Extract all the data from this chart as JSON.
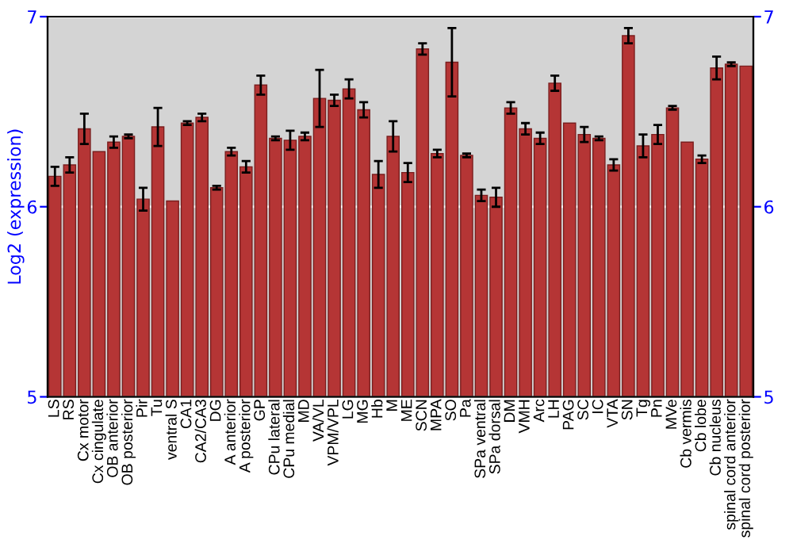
{
  "chart_data": {
    "type": "bar",
    "ylabel": "Log2 (expression)",
    "categories": [
      "LS",
      "RS",
      "Cx motor",
      "Cx cingulate",
      "OB anterior",
      "OB posterior",
      "Pir",
      "Tu",
      "ventral S",
      "CA1",
      "CA2/CA3",
      "DG",
      "A anterior",
      "A posterior",
      "GP",
      "CPu lateral",
      "CPu medial",
      "MD",
      "VA/VL",
      "VPM/VPL",
      "LG",
      "MG",
      "Hb",
      "M",
      "ME",
      "SCN",
      "MPA",
      "SO",
      "Pa",
      "SPa ventral",
      "SPa dorsal",
      "DM",
      "VMH",
      "Arc",
      "LH",
      "PAG",
      "SC",
      "IC",
      "VTA",
      "SN",
      "Tg",
      "Pn",
      "MVe",
      "Cb vermis",
      "Cb lobe",
      "Cb nucleus",
      "spinal cord anterior",
      "spinal cord posterior"
    ],
    "series": [
      {
        "color": "#b53535",
        "values": [
          6.16,
          6.22,
          6.41,
          6.29,
          6.34,
          6.37,
          6.04,
          6.42,
          6.03,
          6.44,
          6.47,
          6.1,
          6.29,
          6.21,
          6.64,
          6.36,
          6.35,
          6.37,
          6.57,
          6.56,
          6.62,
          6.51,
          6.17,
          6.37,
          6.18,
          6.83,
          6.28,
          6.76,
          6.27,
          6.06,
          6.05,
          6.52,
          6.41,
          6.36,
          6.65,
          6.44,
          6.38,
          6.36,
          6.22,
          6.9,
          6.32,
          6.38,
          6.52,
          6.34,
          6.25,
          6.73,
          6.75,
          6.74
        ],
        "errors": [
          0.05,
          0.04,
          0.08,
          null,
          0.03,
          0.01,
          0.06,
          0.1,
          null,
          0.01,
          0.02,
          0.01,
          0.02,
          0.03,
          0.05,
          0.01,
          0.05,
          0.02,
          0.15,
          0.03,
          0.05,
          0.04,
          0.07,
          0.08,
          0.05,
          0.03,
          0.02,
          0.18,
          0.01,
          0.03,
          0.05,
          0.03,
          0.03,
          0.03,
          0.04,
          null,
          0.04,
          0.01,
          0.03,
          0.04,
          0.06,
          0.05,
          0.01,
          null,
          0.02,
          0.06,
          0.01,
          null
        ]
      }
    ],
    "ylim": [
      5,
      7
    ],
    "yticks": [
      5,
      6,
      7
    ],
    "y2lim": [
      5,
      7
    ],
    "y2ticks": [
      5,
      6,
      7
    ],
    "grid": "y"
  }
}
